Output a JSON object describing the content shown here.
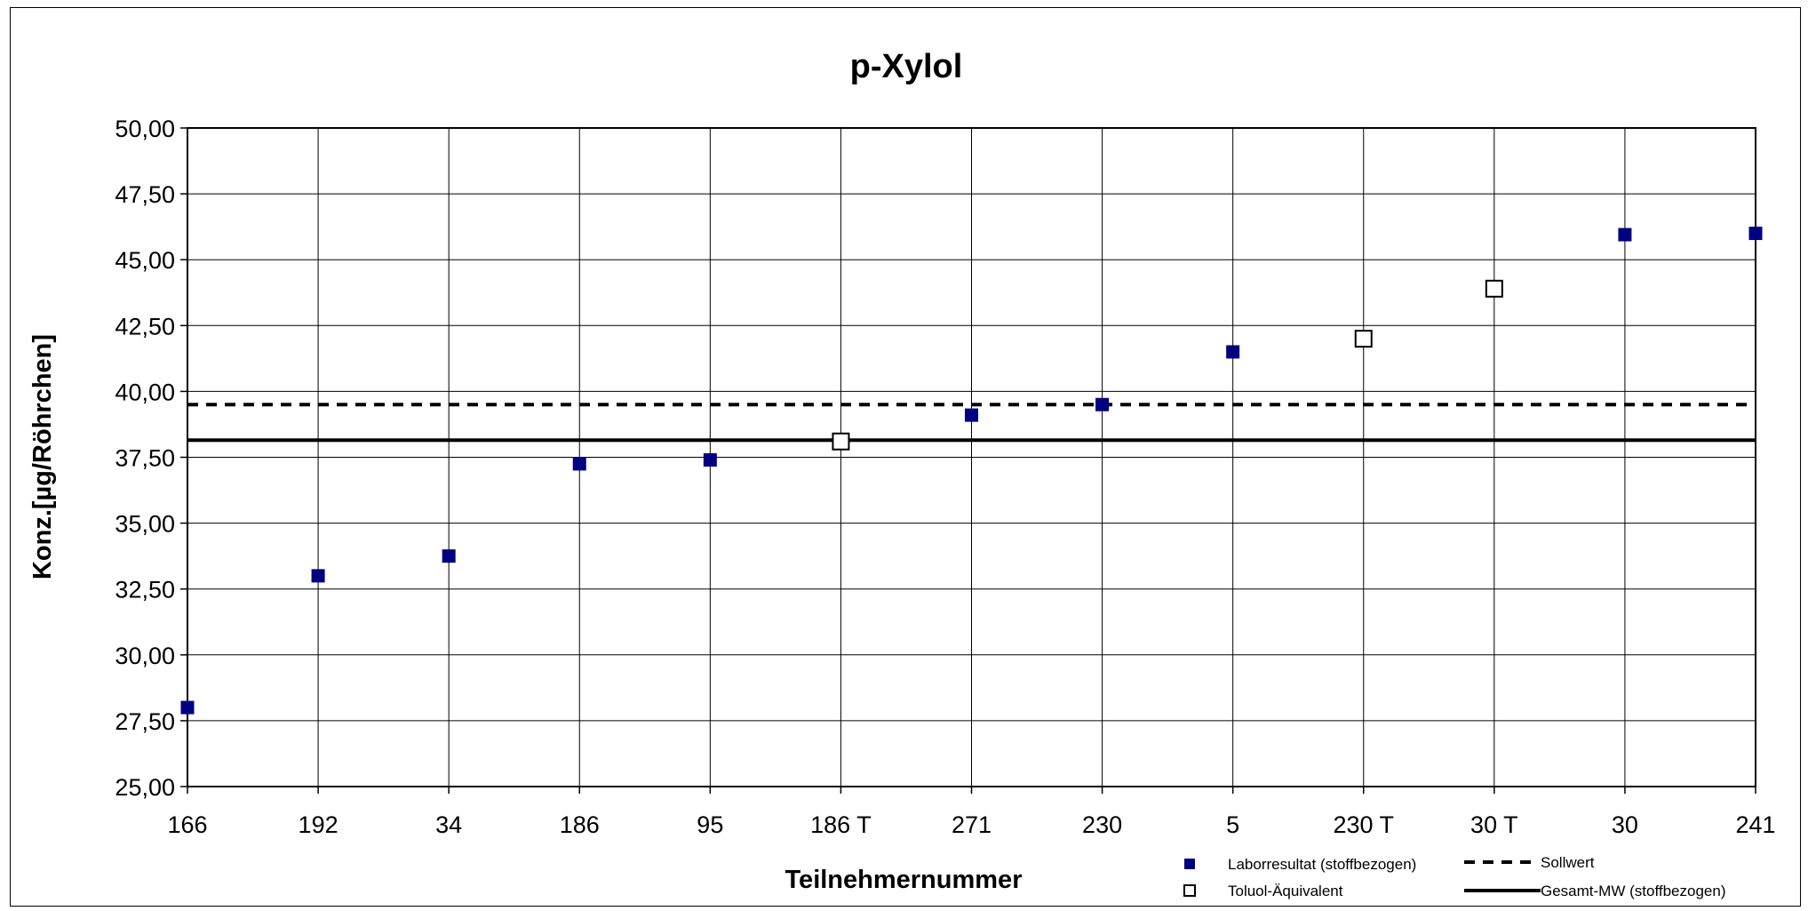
{
  "chart_data": {
    "type": "scatter",
    "title": "p-Xylol",
    "xlabel": "Teilnehmernummer",
    "ylabel": "Konz.[µg/Röhrchen]",
    "categories": [
      "166",
      "192",
      "34",
      "186",
      "95",
      "186 T",
      "271",
      "230",
      "5",
      "230 T",
      "30 T",
      "30",
      "241"
    ],
    "ylim": [
      25,
      50
    ],
    "yticks": [
      25,
      27.5,
      30,
      32.5,
      35,
      37.5,
      40,
      42.5,
      45,
      47.5,
      50
    ],
    "ytick_labels": [
      "25,00",
      "27,50",
      "30,00",
      "32,50",
      "35,00",
      "37,50",
      "40,00",
      "42,50",
      "45,00",
      "47,50",
      "50,00"
    ],
    "grid": true,
    "legend_position": "bottom-right",
    "series": [
      {
        "name": "Laborresultat (stoffbezogen)",
        "marker": "filled-square",
        "color": "#000080",
        "x": [
          "166",
          "192",
          "34",
          "186",
          "95",
          "271",
          "230",
          "5",
          "30",
          "241"
        ],
        "values": [
          28.0,
          33.0,
          33.75,
          37.25,
          37.4,
          39.1,
          39.5,
          41.5,
          45.95,
          46.0
        ]
      },
      {
        "name": "Toluol-Äquivalent",
        "marker": "open-square",
        "color": "#000000",
        "x": [
          "186 T",
          "230 T",
          "30 T"
        ],
        "values": [
          38.1,
          42.0,
          43.9
        ]
      },
      {
        "name": "Sollwert",
        "type": "hline",
        "style": "dashed",
        "color": "#000000",
        "value": 39.5
      },
      {
        "name": "Gesamt-MW (stoffbezogen)",
        "type": "hline",
        "style": "solid",
        "color": "#000000",
        "value": 38.15
      }
    ]
  }
}
